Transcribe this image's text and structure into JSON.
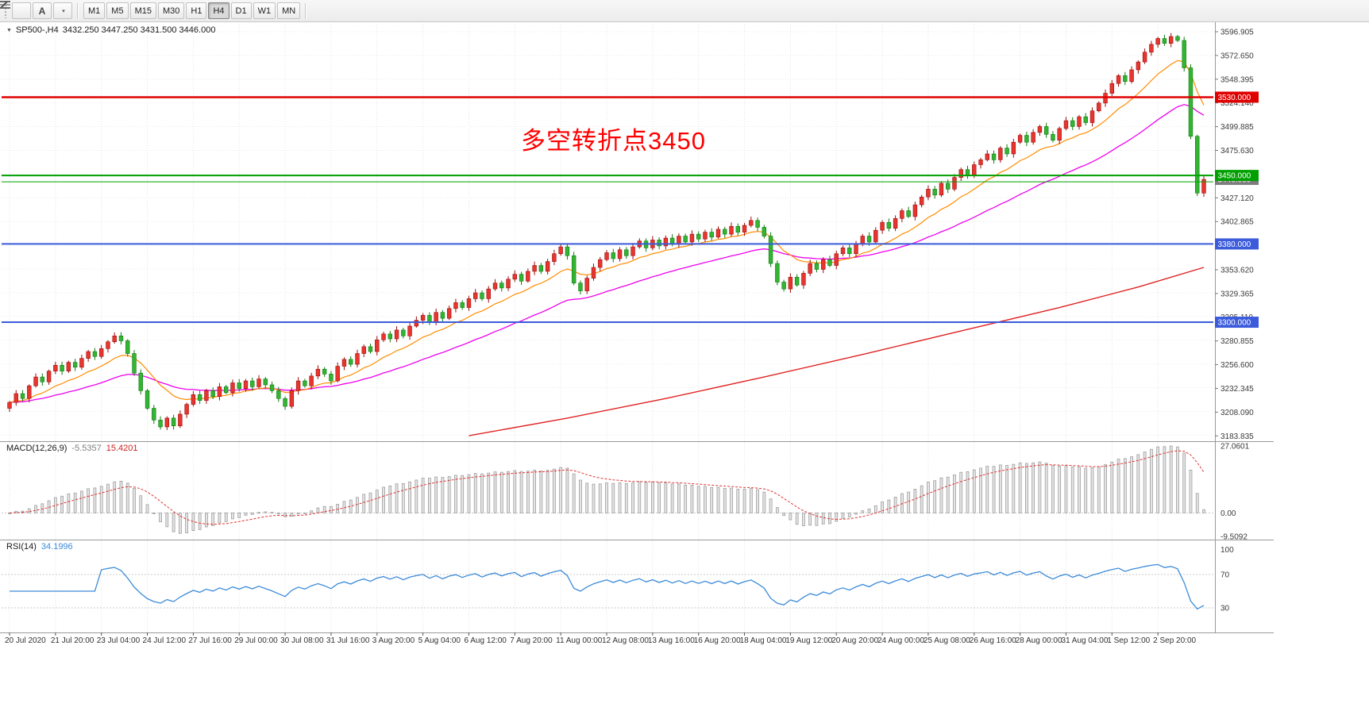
{
  "toolbar": {
    "timeframes": [
      "M1",
      "M5",
      "M15",
      "M30",
      "H1",
      "H4",
      "D1",
      "W1",
      "MN"
    ],
    "active_timeframe": "H4",
    "icons": [
      "chart-list-icon",
      "font-icon",
      "draw-pencil-icon"
    ]
  },
  "chart": {
    "symbol_period": "SP500-,H4",
    "ohlc": "3432.250 3447.250 3431.500 3446.000",
    "annotation": {
      "text": "多空转折点3450",
      "color": "#ff0000"
    },
    "price_axis": {
      "min": 3180,
      "max": 3605,
      "grid_start": 3596.905,
      "grid_step": 24.255,
      "grid_count": 18,
      "ticks": [
        3596.905,
        3572.65,
        3548.395,
        3524.14,
        3499.885,
        3475.63,
        3427.12,
        3402.865,
        3353.62,
        3329.365,
        3305.11,
        3280.855,
        3256.6,
        3232.345,
        3208.09,
        3183.835
      ]
    },
    "hlines": [
      {
        "price": 3530,
        "color": "#e00000",
        "width": 2.5,
        "label": "3530.000"
      },
      {
        "price": 3450,
        "color": "#00a000",
        "width": 2,
        "label": "3450.000"
      },
      {
        "price": 3443.5,
        "color": "#00a000",
        "width": 1,
        "label": null
      },
      {
        "price": 3380,
        "color": "#3b5bdb",
        "width": 2,
        "label": "3380.000"
      },
      {
        "price": 3300,
        "color": "#3b5bdb",
        "width": 2,
        "label": "3300.000"
      }
    ],
    "current_price": {
      "value": "3446.000",
      "price": 3446,
      "box_color": "#7d7d7d"
    }
  },
  "chart_data": {
    "type": "candlestick",
    "symbol": "SP500-",
    "timeframe": "H4",
    "up_color": "#e8352e",
    "up_border": "#9b0f0f",
    "down_color": "#33b533",
    "down_border": "#117a11",
    "closes": [
      3218,
      3227,
      3222,
      3235,
      3244,
      3239,
      3250,
      3256,
      3250,
      3259,
      3254,
      3263,
      3270,
      3265,
      3273,
      3280,
      3286,
      3281,
      3268,
      3248,
      3230,
      3212,
      3200,
      3193,
      3202,
      3194,
      3206,
      3216,
      3226,
      3220,
      3230,
      3224,
      3234,
      3228,
      3238,
      3232,
      3240,
      3234,
      3242,
      3236,
      3230,
      3222,
      3214,
      3230,
      3240,
      3235,
      3245,
      3252,
      3247,
      3240,
      3255,
      3262,
      3257,
      3268,
      3275,
      3270,
      3282,
      3288,
      3283,
      3292,
      3286,
      3296,
      3302,
      3307,
      3300,
      3310,
      3304,
      3314,
      3320,
      3315,
      3324,
      3330,
      3324,
      3334,
      3340,
      3335,
      3344,
      3349,
      3342,
      3352,
      3358,
      3352,
      3362,
      3370,
      3377,
      3368,
      3340,
      3332,
      3345,
      3356,
      3364,
      3371,
      3365,
      3374,
      3368,
      3377,
      3383,
      3376,
      3384,
      3378,
      3386,
      3380,
      3388,
      3382,
      3390,
      3385,
      3392,
      3387,
      3395,
      3390,
      3398,
      3392,
      3399,
      3404,
      3397,
      3388,
      3360,
      3341,
      3334,
      3346,
      3338,
      3350,
      3360,
      3354,
      3364,
      3358,
      3370,
      3376,
      3370,
      3380,
      3388,
      3382,
      3394,
      3402,
      3396,
      3406,
      3414,
      3408,
      3420,
      3428,
      3436,
      3430,
      3442,
      3436,
      3448,
      3456,
      3450,
      3461,
      3466,
      3472,
      3466,
      3478,
      3472,
      3484,
      3491,
      3484,
      3494,
      3500,
      3492,
      3486,
      3498,
      3506,
      3500,
      3510,
      3504,
      3516,
      3524,
      3534,
      3544,
      3552,
      3546,
      3558,
      3566,
      3576,
      3584,
      3590,
      3585,
      3592,
      3588,
      3560,
      3490,
      3432,
      3446
    ],
    "open_first": 3212,
    "time_labels": [
      "20 Jul 2020",
      "21 Jul 20:00",
      "23 Jul 04:00",
      "24 Jul 12:00",
      "27 Jul 16:00",
      "29 Jul 00:00",
      "30 Jul 08:00",
      "31 Jul 16:00",
      "3 Aug 20:00",
      "5 Aug 04:00",
      "6 Aug 12:00",
      "7 Aug 20:00",
      "11 Aug 00:00",
      "12 Aug 08:00",
      "13 Aug 16:00",
      "16 Aug 20:00",
      "18 Aug 04:00",
      "19 Aug 12:00",
      "20 Aug 20:00",
      "24 Aug 00:00",
      "25 Aug 08:00",
      "26 Aug 16:00",
      "28 Aug 00:00",
      "31 Aug 04:00",
      "1 Sep 12:00",
      "2 Sep 20:00"
    ],
    "candles_per_label": 7,
    "ma_fast": {
      "period": 12,
      "color": "#ff8c00"
    },
    "ma_mid": {
      "period": 34,
      "color": "#ee00ee"
    },
    "ma_long": {
      "color": "#e02222",
      "anchors": [
        [
          70,
          3184
        ],
        [
          85,
          3202
        ],
        [
          100,
          3222
        ],
        [
          115,
          3244
        ],
        [
          130,
          3267
        ],
        [
          145,
          3291
        ],
        [
          160,
          3315
        ],
        [
          172,
          3336
        ],
        [
          182,
          3356
        ]
      ]
    }
  },
  "macd": {
    "label": "MACD(12,26,9)",
    "value_main": "-5.5357",
    "value_signal": "15.4201",
    "fast": 12,
    "slow": 26,
    "signal": 9,
    "max": 27.0601,
    "min": -9.5092,
    "axis": [
      {
        "v": 27.0601,
        "t": "27.0601"
      },
      {
        "v": 0,
        "t": "0.00"
      },
      {
        "v": -9.5092,
        "t": "-9.5092"
      }
    ],
    "hist_fill": "#e4e4e4",
    "hist_border": "#9a9a9a",
    "signal_color": "#e03333"
  },
  "rsi": {
    "label": "RSI(14)",
    "value": "34.1996",
    "period": 14,
    "color": "#3c8bd9",
    "levels": [
      70,
      30
    ],
    "axis": [
      {
        "v": 100,
        "t": "100"
      },
      {
        "v": 70,
        "t": "70"
      },
      {
        "v": 30,
        "t": "30"
      }
    ]
  }
}
